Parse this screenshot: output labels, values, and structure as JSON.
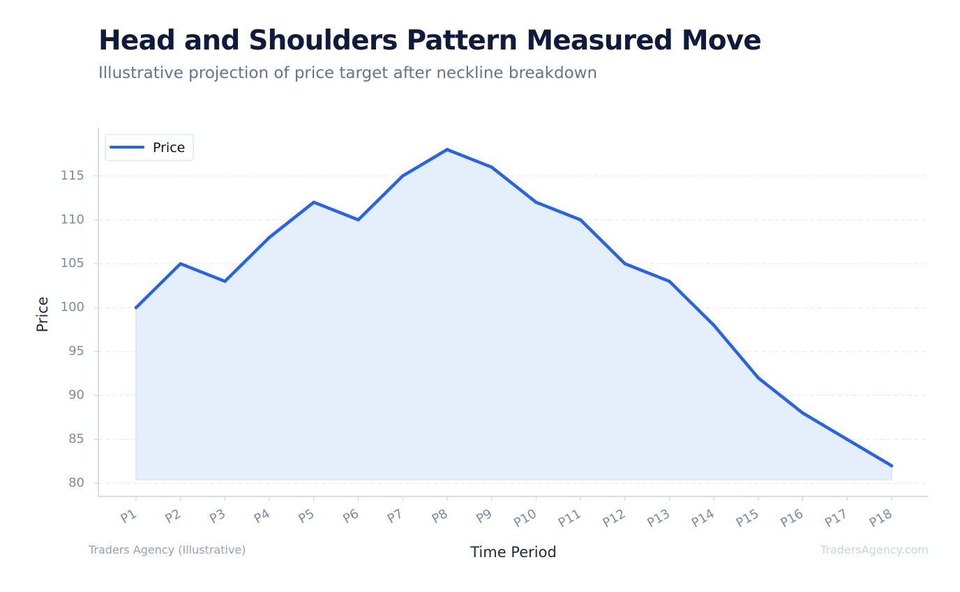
{
  "header": {
    "title": "Head and Shoulders Pattern Measured Move",
    "subtitle": "Illustrative projection of price target after neckline breakdown"
  },
  "footer": {
    "left_text": "Traders Agency (Illustrative)",
    "right_text": "TradersAgency.com"
  },
  "colors": {
    "line": "#2563eb",
    "fill": "#e5eefb",
    "grid": "#e2e8f0",
    "axis": "#cbd5e1"
  },
  "chart_data": {
    "type": "area",
    "title": "",
    "xlabel": "Time Period",
    "ylabel": "Price",
    "categories": [
      "P1",
      "P2",
      "P3",
      "P4",
      "P5",
      "P6",
      "P7",
      "P8",
      "P9",
      "P10",
      "P11",
      "P12",
      "P13",
      "P14",
      "P15",
      "P16",
      "P17",
      "P18"
    ],
    "series": [
      {
        "name": "Price",
        "values": [
          100,
          105,
          103,
          108,
          112,
          110,
          115,
          118,
          116,
          112,
          110,
          105,
          103,
          98,
          92,
          88,
          85,
          82
        ]
      }
    ],
    "fill_baseline": 80.4,
    "ylim": [
      78.5,
      120.5
    ],
    "yticks": [
      80,
      85,
      90,
      95,
      100,
      105,
      110,
      115
    ],
    "grid": true,
    "legend_position": "top-left"
  }
}
